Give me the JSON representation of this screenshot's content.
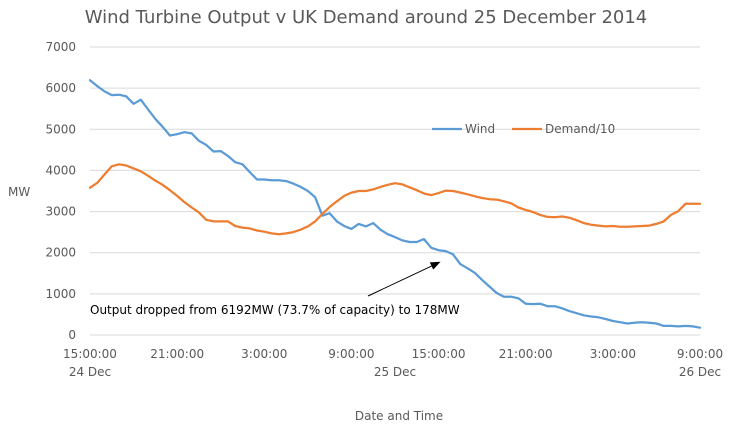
{
  "chart_data": {
    "type": "line",
    "title": "Wind Turbine Output v UK Demand around 25 December 2014",
    "xlabel": "Date and Time",
    "ylabel": "MW",
    "ylim": [
      0,
      7000
    ],
    "yticks": [
      "0",
      "1000",
      "2000",
      "3000",
      "4000",
      "5000",
      "6000",
      "7000"
    ],
    "x_unit": "hours from 24 Dec 15:00",
    "xlim": [
      0,
      42
    ],
    "xticks": [
      {
        "x": 0,
        "label": "15:00:00"
      },
      {
        "x": 6,
        "label": "21:00:00"
      },
      {
        "x": 12,
        "label": "3:00:00"
      },
      {
        "x": 18,
        "label": "9:00:00"
      },
      {
        "x": 24,
        "label": "15:00:00"
      },
      {
        "x": 30,
        "label": "21:00:00"
      },
      {
        "x": 36,
        "label": "3:00:00"
      },
      {
        "x": 42,
        "label": "9:00:00"
      }
    ],
    "date_labels": [
      {
        "x": 0,
        "label": "24 Dec"
      },
      {
        "x": 21,
        "label": "25 Dec"
      },
      {
        "x": 42,
        "label": "26 Dec"
      }
    ],
    "grid": "horizontal",
    "legend": "center-right",
    "series": [
      {
        "name": "Wind",
        "color": "#5b9bd5",
        "x": [
          0,
          0.5,
          1,
          1.5,
          2,
          2.5,
          3,
          3.5,
          4,
          4.5,
          5,
          5.5,
          6,
          6.5,
          7,
          7.5,
          8,
          8.5,
          9,
          9.5,
          10,
          10.5,
          11,
          11.5,
          12,
          12.5,
          13,
          13.5,
          14,
          14.5,
          15,
          15.5,
          16,
          16.5,
          17,
          17.5,
          18,
          18.5,
          19,
          19.5,
          20,
          20.5,
          21,
          21.5,
          22,
          22.5,
          23,
          23.5,
          24,
          24.5,
          25,
          25.5,
          26,
          26.5,
          27,
          27.5,
          28,
          28.5,
          29,
          29.5,
          30,
          30.5,
          31,
          31.5,
          32,
          32.5,
          33,
          33.5,
          34,
          34.5,
          35,
          35.5,
          36,
          36.5,
          37,
          37.5,
          38,
          38.5,
          39,
          39.5,
          40,
          40.5,
          41,
          41.5,
          42
        ],
        "y": [
          6192,
          6050,
          5920,
          5830,
          5840,
          5800,
          5620,
          5720,
          5480,
          5250,
          5060,
          4850,
          4880,
          4930,
          4900,
          4720,
          4620,
          4460,
          4470,
          4350,
          4200,
          4150,
          3960,
          3780,
          3780,
          3760,
          3760,
          3740,
          3680,
          3600,
          3500,
          3350,
          2900,
          2960,
          2760,
          2650,
          2580,
          2700,
          2640,
          2720,
          2560,
          2450,
          2380,
          2300,
          2260,
          2260,
          2330,
          2120,
          2060,
          2040,
          1960,
          1720,
          1620,
          1510,
          1340,
          1180,
          1020,
          930,
          930,
          890,
          760,
          750,
          760,
          700,
          700,
          650,
          580,
          530,
          480,
          450,
          430,
          390,
          340,
          310,
          280,
          300,
          310,
          300,
          280,
          220,
          220,
          210,
          220,
          210,
          178
        ]
      },
      {
        "name": "Demand/10",
        "color": "#ed7d31",
        "x": [
          0,
          0.5,
          1,
          1.5,
          2,
          2.5,
          3,
          3.5,
          4,
          4.5,
          5,
          5.5,
          6,
          6.5,
          7,
          7.5,
          8,
          8.5,
          9,
          9.5,
          10,
          10.5,
          11,
          11.5,
          12,
          12.5,
          13,
          13.5,
          14,
          14.5,
          15,
          15.5,
          16,
          16.5,
          17,
          17.5,
          18,
          18.5,
          19,
          19.5,
          20,
          20.5,
          21,
          21.5,
          22,
          22.5,
          23,
          23.5,
          24,
          24.5,
          25,
          25.5,
          26,
          26.5,
          27,
          27.5,
          28,
          28.5,
          29,
          29.5,
          30,
          30.5,
          31,
          31.5,
          32,
          32.5,
          33,
          33.5,
          34,
          34.5,
          35,
          35.5,
          36,
          36.5,
          37,
          37.5,
          38,
          38.5,
          39,
          39.5,
          40,
          40.5,
          41,
          41.5,
          42
        ],
        "y": [
          3580,
          3700,
          3900,
          4100,
          4150,
          4120,
          4050,
          3980,
          3870,
          3750,
          3650,
          3520,
          3380,
          3230,
          3100,
          2980,
          2800,
          2760,
          2760,
          2760,
          2650,
          2610,
          2590,
          2540,
          2510,
          2470,
          2450,
          2470,
          2500,
          2560,
          2640,
          2760,
          2940,
          3110,
          3250,
          3380,
          3460,
          3500,
          3500,
          3540,
          3600,
          3650,
          3690,
          3660,
          3590,
          3520,
          3440,
          3400,
          3450,
          3510,
          3500,
          3460,
          3420,
          3370,
          3330,
          3300,
          3290,
          3250,
          3200,
          3100,
          3040,
          2990,
          2920,
          2870,
          2860,
          2880,
          2850,
          2790,
          2720,
          2680,
          2660,
          2640,
          2650,
          2630,
          2630,
          2640,
          2650,
          2660,
          2700,
          2760,
          2920,
          3010,
          3190,
          3190,
          3190
        ]
      }
    ],
    "annotation": {
      "text": "Output dropped from 6192MW (73.7% of capacity) to 178MW",
      "arrow_to": {
        "x": 24,
        "y": 1780
      }
    }
  }
}
